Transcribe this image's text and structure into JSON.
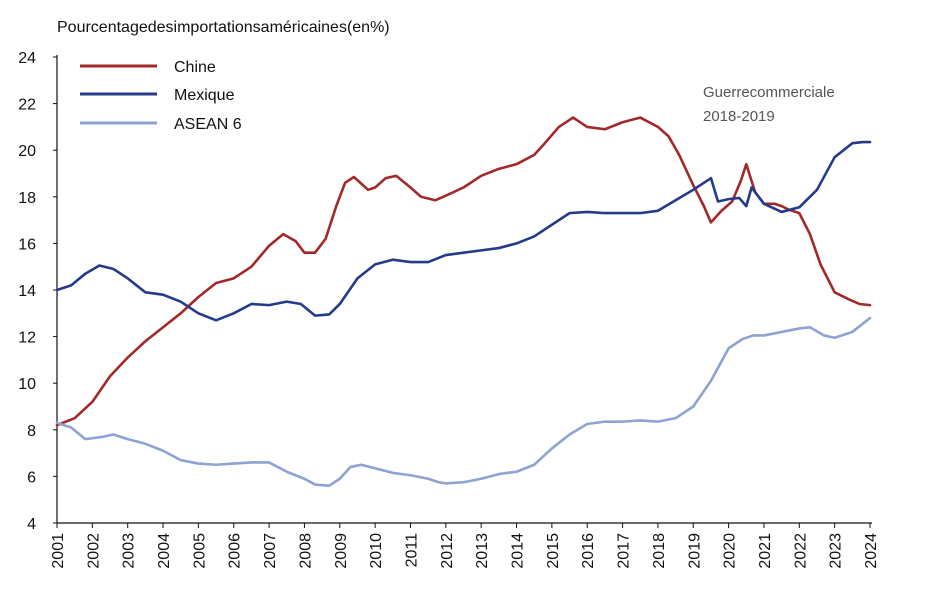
{
  "chart_data": {
    "type": "line",
    "title": "Pourcentagedesimportationsaméricaines(en%)",
    "xlabel": "",
    "ylabel": "",
    "ylim": [
      4,
      24
    ],
    "yticks": [
      4,
      6,
      8,
      10,
      12,
      14,
      16,
      18,
      20,
      22,
      24
    ],
    "xlim": [
      2001,
      2024
    ],
    "xticks": [
      "2001",
      "2002",
      "2003",
      "2004",
      "2005",
      "2006",
      "2007",
      "2008",
      "2009",
      "2010",
      "2011",
      "2012",
      "2013",
      "2014",
      "2015",
      "2016",
      "2017",
      "2018",
      "2019",
      "2020",
      "2021",
      "2022",
      "2023",
      "2024"
    ],
    "grid": false,
    "legend_position": "top-left",
    "annotation": {
      "line1": "Guerrecommerciale",
      "line2": "2018-2019"
    },
    "series": [
      {
        "name": "Chine",
        "color": "#a3282a",
        "points": [
          [
            2001.0,
            8.2
          ],
          [
            2001.5,
            8.5
          ],
          [
            2002.0,
            9.2
          ],
          [
            2002.5,
            10.3
          ],
          [
            2003.0,
            11.1
          ],
          [
            2003.5,
            11.8
          ],
          [
            2004.0,
            12.4
          ],
          [
            2004.5,
            13.0
          ],
          [
            2005.0,
            13.7
          ],
          [
            2005.5,
            14.3
          ],
          [
            2006.0,
            14.5
          ],
          [
            2006.5,
            15.0
          ],
          [
            2007.0,
            15.9
          ],
          [
            2007.4,
            16.4
          ],
          [
            2007.75,
            16.1
          ],
          [
            2008.0,
            15.6
          ],
          [
            2008.3,
            15.6
          ],
          [
            2008.6,
            16.2
          ],
          [
            2008.9,
            17.6
          ],
          [
            2009.15,
            18.6
          ],
          [
            2009.4,
            18.85
          ],
          [
            2009.8,
            18.3
          ],
          [
            2010.0,
            18.4
          ],
          [
            2010.3,
            18.8
          ],
          [
            2010.6,
            18.9
          ],
          [
            2011.0,
            18.4
          ],
          [
            2011.3,
            18.0
          ],
          [
            2011.7,
            17.85
          ],
          [
            2012.0,
            18.05
          ],
          [
            2012.5,
            18.4
          ],
          [
            2013.0,
            18.9
          ],
          [
            2013.5,
            19.2
          ],
          [
            2014.0,
            19.4
          ],
          [
            2014.5,
            19.8
          ],
          [
            2014.8,
            20.3
          ],
          [
            2015.2,
            21.0
          ],
          [
            2015.6,
            21.4
          ],
          [
            2016.0,
            21.0
          ],
          [
            2016.5,
            20.9
          ],
          [
            2017.0,
            21.2
          ],
          [
            2017.5,
            21.4
          ],
          [
            2018.0,
            21.0
          ],
          [
            2018.3,
            20.6
          ],
          [
            2018.6,
            19.8
          ],
          [
            2019.0,
            18.5
          ],
          [
            2019.3,
            17.6
          ],
          [
            2019.5,
            16.9
          ],
          [
            2019.8,
            17.4
          ],
          [
            2020.1,
            17.8
          ],
          [
            2020.35,
            18.7
          ],
          [
            2020.5,
            19.4
          ],
          [
            2020.75,
            18.2
          ],
          [
            2021.0,
            17.7
          ],
          [
            2021.3,
            17.7
          ],
          [
            2021.5,
            17.6
          ],
          [
            2021.7,
            17.45
          ],
          [
            2022.0,
            17.3
          ],
          [
            2022.3,
            16.4
          ],
          [
            2022.6,
            15.1
          ],
          [
            2023.0,
            13.9
          ],
          [
            2023.4,
            13.6
          ],
          [
            2023.7,
            13.4
          ],
          [
            2024.0,
            13.35
          ]
        ]
      },
      {
        "name": "Mexique",
        "color": "#243a8a",
        "points": [
          [
            2001.0,
            14.0
          ],
          [
            2001.4,
            14.2
          ],
          [
            2001.8,
            14.7
          ],
          [
            2002.2,
            15.05
          ],
          [
            2002.6,
            14.9
          ],
          [
            2003.0,
            14.5
          ],
          [
            2003.5,
            13.9
          ],
          [
            2004.0,
            13.8
          ],
          [
            2004.5,
            13.5
          ],
          [
            2005.0,
            13.0
          ],
          [
            2005.5,
            12.7
          ],
          [
            2006.0,
            13.0
          ],
          [
            2006.5,
            13.4
          ],
          [
            2007.0,
            13.35
          ],
          [
            2007.5,
            13.5
          ],
          [
            2007.9,
            13.4
          ],
          [
            2008.3,
            12.9
          ],
          [
            2008.7,
            12.95
          ],
          [
            2009.0,
            13.4
          ],
          [
            2009.5,
            14.5
          ],
          [
            2010.0,
            15.1
          ],
          [
            2010.5,
            15.3
          ],
          [
            2011.0,
            15.2
          ],
          [
            2011.5,
            15.2
          ],
          [
            2012.0,
            15.5
          ],
          [
            2012.5,
            15.6
          ],
          [
            2013.0,
            15.7
          ],
          [
            2013.5,
            15.8
          ],
          [
            2014.0,
            16.0
          ],
          [
            2014.5,
            16.3
          ],
          [
            2015.0,
            16.8
          ],
          [
            2015.5,
            17.3
          ],
          [
            2016.0,
            17.35
          ],
          [
            2016.5,
            17.3
          ],
          [
            2017.0,
            17.3
          ],
          [
            2017.5,
            17.3
          ],
          [
            2018.0,
            17.4
          ],
          [
            2018.5,
            17.85
          ],
          [
            2019.0,
            18.3
          ],
          [
            2019.5,
            18.8
          ],
          [
            2019.7,
            17.8
          ],
          [
            2020.0,
            17.9
          ],
          [
            2020.3,
            17.95
          ],
          [
            2020.5,
            17.6
          ],
          [
            2020.65,
            18.4
          ],
          [
            2021.0,
            17.7
          ],
          [
            2021.5,
            17.35
          ],
          [
            2022.0,
            17.55
          ],
          [
            2022.5,
            18.3
          ],
          [
            2023.0,
            19.7
          ],
          [
            2023.5,
            20.3
          ],
          [
            2023.8,
            20.35
          ],
          [
            2024.0,
            20.35
          ]
        ]
      },
      {
        "name": "ASEAN 6",
        "color": "#8ca3d3",
        "points": [
          [
            2001.0,
            8.3
          ],
          [
            2001.4,
            8.1
          ],
          [
            2001.8,
            7.6
          ],
          [
            2002.3,
            7.7
          ],
          [
            2002.6,
            7.8
          ],
          [
            2003.0,
            7.6
          ],
          [
            2003.5,
            7.4
          ],
          [
            2004.0,
            7.1
          ],
          [
            2004.5,
            6.7
          ],
          [
            2005.0,
            6.55
          ],
          [
            2005.5,
            6.5
          ],
          [
            2006.0,
            6.55
          ],
          [
            2006.5,
            6.6
          ],
          [
            2007.0,
            6.6
          ],
          [
            2007.5,
            6.2
          ],
          [
            2008.0,
            5.9
          ],
          [
            2008.3,
            5.65
          ],
          [
            2008.7,
            5.6
          ],
          [
            2009.0,
            5.9
          ],
          [
            2009.3,
            6.4
          ],
          [
            2009.6,
            6.5
          ],
          [
            2010.0,
            6.35
          ],
          [
            2010.5,
            6.15
          ],
          [
            2011.0,
            6.05
          ],
          [
            2011.5,
            5.9
          ],
          [
            2011.8,
            5.75
          ],
          [
            2012.0,
            5.7
          ],
          [
            2012.5,
            5.75
          ],
          [
            2013.0,
            5.9
          ],
          [
            2013.5,
            6.1
          ],
          [
            2014.0,
            6.2
          ],
          [
            2014.5,
            6.5
          ],
          [
            2015.0,
            7.2
          ],
          [
            2015.5,
            7.8
          ],
          [
            2016.0,
            8.25
          ],
          [
            2016.5,
            8.35
          ],
          [
            2017.0,
            8.35
          ],
          [
            2017.5,
            8.4
          ],
          [
            2018.0,
            8.35
          ],
          [
            2018.5,
            8.5
          ],
          [
            2019.0,
            9.0
          ],
          [
            2019.5,
            10.1
          ],
          [
            2020.0,
            11.5
          ],
          [
            2020.4,
            11.9
          ],
          [
            2020.7,
            12.05
          ],
          [
            2021.0,
            12.05
          ],
          [
            2021.5,
            12.2
          ],
          [
            2022.0,
            12.35
          ],
          [
            2022.3,
            12.4
          ],
          [
            2022.7,
            12.05
          ],
          [
            2023.0,
            11.95
          ],
          [
            2023.5,
            12.2
          ],
          [
            2024.0,
            12.8
          ]
        ]
      }
    ]
  }
}
